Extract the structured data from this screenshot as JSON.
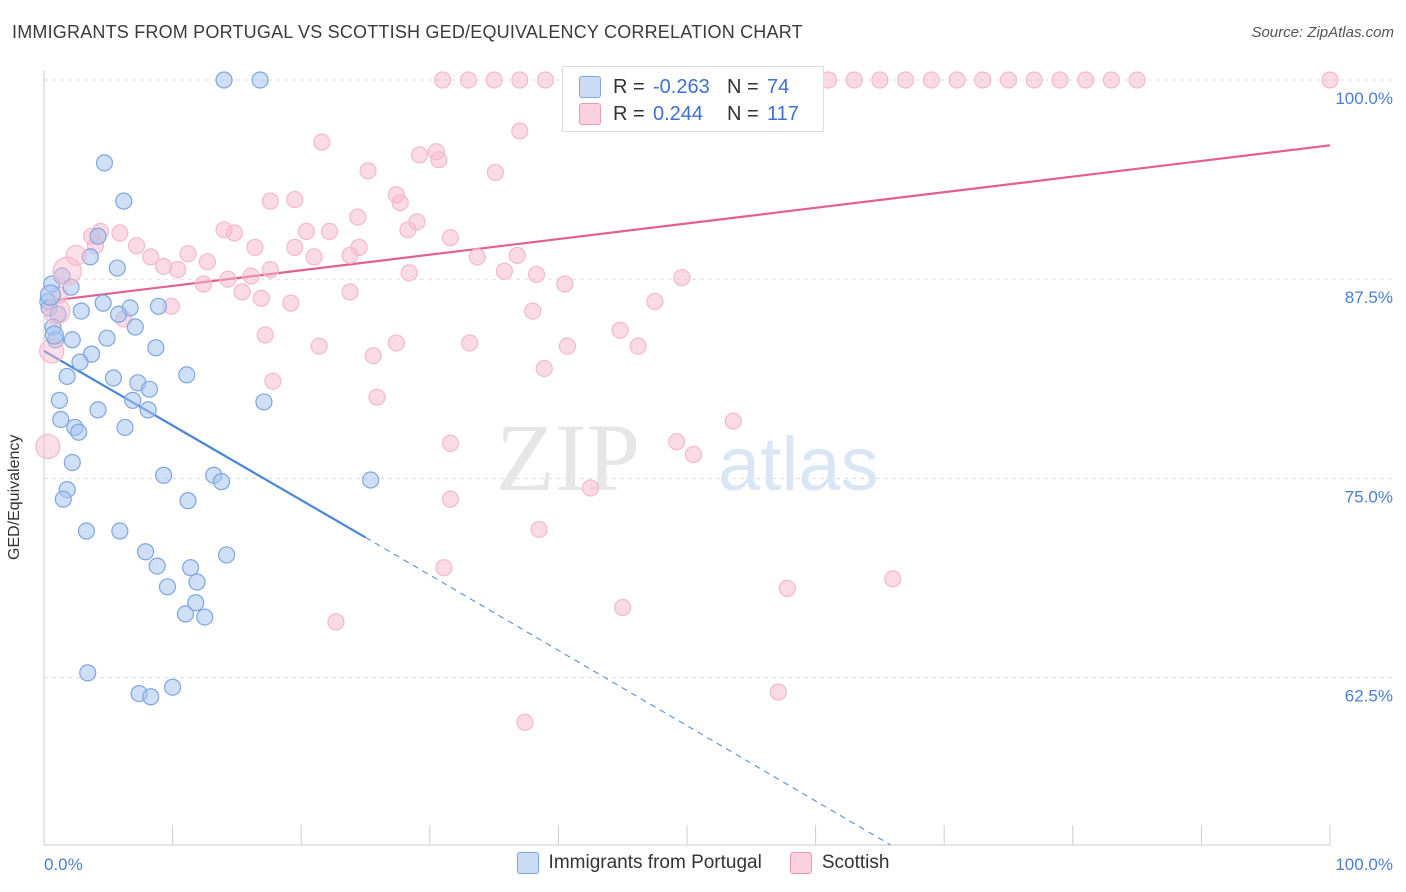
{
  "header": {
    "title": "IMMIGRANTS FROM PORTUGAL VS SCOTTISH GED/EQUIVALENCY CORRELATION CHART",
    "source": "Source: ZipAtlas.com"
  },
  "watermark": {
    "zip": "ZIP",
    "atlas": "atlas"
  },
  "legend": {
    "rows": [
      {
        "r_label": "R =",
        "r_value": "-0.263",
        "n_label": "N =",
        "n_value": "74",
        "color": "#a8c4ee"
      },
      {
        "r_label": "R =",
        "r_value": "0.244",
        "n_label": "N =",
        "n_value": "117",
        "color": "#f6b8cc"
      }
    ]
  },
  "bottom_legend": [
    {
      "label": "Immigrants from Portugal",
      "color": "#a8c4ee"
    },
    {
      "label": "Scottish",
      "color": "#f6b8cc"
    }
  ],
  "chart_data": {
    "type": "scatter",
    "ylabel": "GED/Equivalency",
    "xlim": [
      0,
      100
    ],
    "ylim": [
      52,
      100
    ],
    "x_tick_labels": [
      "0.0%",
      "100.0%"
    ],
    "y_ticks": [
      {
        "value": 100.0,
        "label": "100.0%"
      },
      {
        "value": 87.5,
        "label": "87.5%"
      },
      {
        "value": 75.0,
        "label": "75.0%"
      },
      {
        "value": 62.5,
        "label": "62.5%"
      }
    ],
    "grid": "horizontal-dashed",
    "colors": {
      "blue": "#4a86d6",
      "blue_fill": "#a8c4ee",
      "pink": "#e35f8f",
      "pink_fill": "#f6b8cc",
      "tick_label": "#4a7fd4"
    },
    "series": [
      {
        "name": "Immigrants from Portugal",
        "points": [
          [
            14,
            100
          ],
          [
            16.8,
            100
          ],
          [
            4.7,
            94.8
          ],
          [
            6.2,
            92.4
          ],
          [
            4.2,
            90.2
          ],
          [
            3.6,
            88.9
          ],
          [
            5.7,
            88.2
          ],
          [
            0.6,
            87.2
          ],
          [
            1.4,
            87.7
          ],
          [
            2.1,
            87.0
          ],
          [
            0.3,
            86.1
          ],
          [
            0.4,
            85.7
          ],
          [
            1.1,
            85.3
          ],
          [
            2.9,
            85.5
          ],
          [
            4.6,
            86.0
          ],
          [
            6.7,
            85.7
          ],
          [
            8.9,
            85.8
          ],
          [
            0.7,
            84.5
          ],
          [
            5.8,
            85.3
          ],
          [
            7.1,
            84.5
          ],
          [
            0.9,
            83.7
          ],
          [
            2.2,
            83.7
          ],
          [
            4.9,
            83.8
          ],
          [
            8.7,
            83.2
          ],
          [
            3.7,
            82.8
          ],
          [
            2.8,
            82.3
          ],
          [
            1.8,
            81.4
          ],
          [
            5.4,
            81.3
          ],
          [
            7.3,
            81.0
          ],
          [
            8.2,
            80.6
          ],
          [
            11.1,
            81.5
          ],
          [
            1.2,
            79.9
          ],
          [
            4.2,
            79.3
          ],
          [
            6.9,
            79.9
          ],
          [
            8.1,
            79.3
          ],
          [
            17.1,
            79.8
          ],
          [
            1.3,
            78.7
          ],
          [
            2.4,
            78.2
          ],
          [
            2.7,
            77.9
          ],
          [
            6.3,
            78.2
          ],
          [
            2.2,
            76.0
          ],
          [
            9.3,
            75.2
          ],
          [
            13.2,
            75.2
          ],
          [
            13.8,
            74.8
          ],
          [
            1.8,
            74.3
          ],
          [
            1.5,
            73.7
          ],
          [
            11.2,
            73.6
          ],
          [
            25.4,
            74.9
          ],
          [
            3.3,
            71.7
          ],
          [
            5.9,
            71.7
          ],
          [
            7.9,
            70.4
          ],
          [
            14.2,
            70.2
          ],
          [
            8.8,
            69.5
          ],
          [
            11.4,
            69.4
          ],
          [
            9.6,
            68.2
          ],
          [
            11.9,
            68.5
          ],
          [
            11.0,
            66.5
          ],
          [
            11.8,
            67.2
          ],
          [
            12.5,
            66.3
          ],
          [
            3.4,
            62.8
          ],
          [
            7.4,
            61.5
          ],
          [
            8.3,
            61.3
          ],
          [
            10.0,
            61.9
          ]
        ],
        "trend_solid": {
          "x": [
            0,
            25
          ],
          "y": [
            83.0,
            71.3
          ]
        },
        "trend_dashed": {
          "x": [
            25,
            70.5
          ],
          "y": [
            71.3,
            49.8
          ]
        }
      },
      {
        "name": "Scottish",
        "points": [
          [
            31,
            100
          ],
          [
            33,
            100
          ],
          [
            35,
            100
          ],
          [
            37,
            100
          ],
          [
            39,
            100
          ],
          [
            41,
            100
          ],
          [
            43,
            100
          ],
          [
            45,
            100
          ],
          [
            47,
            100
          ],
          [
            49,
            100
          ],
          [
            51,
            100
          ],
          [
            53,
            100
          ],
          [
            55,
            100
          ],
          [
            57,
            100
          ],
          [
            59,
            100
          ],
          [
            61,
            100
          ],
          [
            63,
            100
          ],
          [
            65,
            100
          ],
          [
            67,
            100
          ],
          [
            69,
            100
          ],
          [
            71,
            100
          ],
          [
            73,
            100
          ],
          [
            75,
            100
          ],
          [
            77,
            100
          ],
          [
            79,
            100
          ],
          [
            81,
            100
          ],
          [
            83,
            100
          ],
          [
            85,
            100
          ],
          [
            100,
            100
          ],
          [
            37.0,
            96.8
          ],
          [
            21.6,
            96.1
          ],
          [
            29.2,
            95.3
          ],
          [
            30.5,
            95.5
          ],
          [
            30.7,
            95.0
          ],
          [
            25.2,
            94.3
          ],
          [
            35.1,
            94.2
          ],
          [
            27.4,
            92.8
          ],
          [
            27.7,
            92.3
          ],
          [
            17.6,
            92.4
          ],
          [
            19.5,
            92.5
          ],
          [
            24.4,
            91.4
          ],
          [
            29.0,
            91.1
          ],
          [
            28.3,
            90.6
          ],
          [
            14.0,
            90.6
          ],
          [
            14.8,
            90.4
          ],
          [
            20.4,
            90.5
          ],
          [
            22.2,
            90.5
          ],
          [
            31.6,
            90.1
          ],
          [
            3.7,
            90.2
          ],
          [
            4.0,
            89.6
          ],
          [
            4.4,
            90.5
          ],
          [
            5.9,
            90.4
          ],
          [
            7.2,
            89.6
          ],
          [
            16.4,
            89.5
          ],
          [
            19.5,
            89.5
          ],
          [
            21.0,
            88.9
          ],
          [
            24.5,
            89.5
          ],
          [
            23.8,
            89.0
          ],
          [
            36.8,
            89.0
          ],
          [
            33.7,
            88.9
          ],
          [
            8.3,
            88.9
          ],
          [
            11.2,
            89.1
          ],
          [
            12.7,
            88.6
          ],
          [
            9.3,
            88.3
          ],
          [
            10.4,
            88.1
          ],
          [
            12.4,
            87.2
          ],
          [
            14.3,
            87.5
          ],
          [
            16.1,
            87.7
          ],
          [
            17.6,
            88.1
          ],
          [
            35.8,
            88.0
          ],
          [
            28.4,
            87.9
          ],
          [
            38.3,
            87.8
          ],
          [
            49.6,
            87.6
          ],
          [
            15.4,
            86.7
          ],
          [
            16.9,
            86.3
          ],
          [
            19.2,
            86.0
          ],
          [
            9.9,
            85.8
          ],
          [
            23.8,
            86.7
          ],
          [
            40.5,
            87.2
          ],
          [
            47.5,
            86.1
          ],
          [
            38.0,
            85.5
          ],
          [
            6.2,
            85.0
          ],
          [
            17.2,
            84.0
          ],
          [
            21.4,
            83.3
          ],
          [
            27.4,
            83.5
          ],
          [
            33.1,
            83.5
          ],
          [
            40.7,
            83.3
          ],
          [
            44.8,
            84.3
          ],
          [
            46.2,
            83.3
          ],
          [
            25.6,
            82.7
          ],
          [
            38.9,
            81.9
          ],
          [
            17.8,
            81.1
          ],
          [
            25.9,
            80.1
          ],
          [
            53.6,
            78.6
          ],
          [
            31.6,
            77.2
          ],
          [
            49.2,
            77.3
          ],
          [
            50.5,
            76.5
          ],
          [
            42.5,
            74.4
          ],
          [
            31.6,
            73.7
          ],
          [
            38.5,
            71.8
          ],
          [
            31.1,
            69.4
          ],
          [
            57.8,
            68.1
          ],
          [
            66.0,
            68.7
          ],
          [
            45.0,
            66.9
          ],
          [
            22.7,
            66.0
          ],
          [
            57.1,
            61.6
          ],
          [
            37.4,
            59.7
          ],
          [
            1.2,
            86.5
          ]
        ],
        "trend_solid": {
          "x": [
            0,
            100
          ],
          "y": [
            86.1,
            95.9
          ]
        }
      }
    ]
  }
}
